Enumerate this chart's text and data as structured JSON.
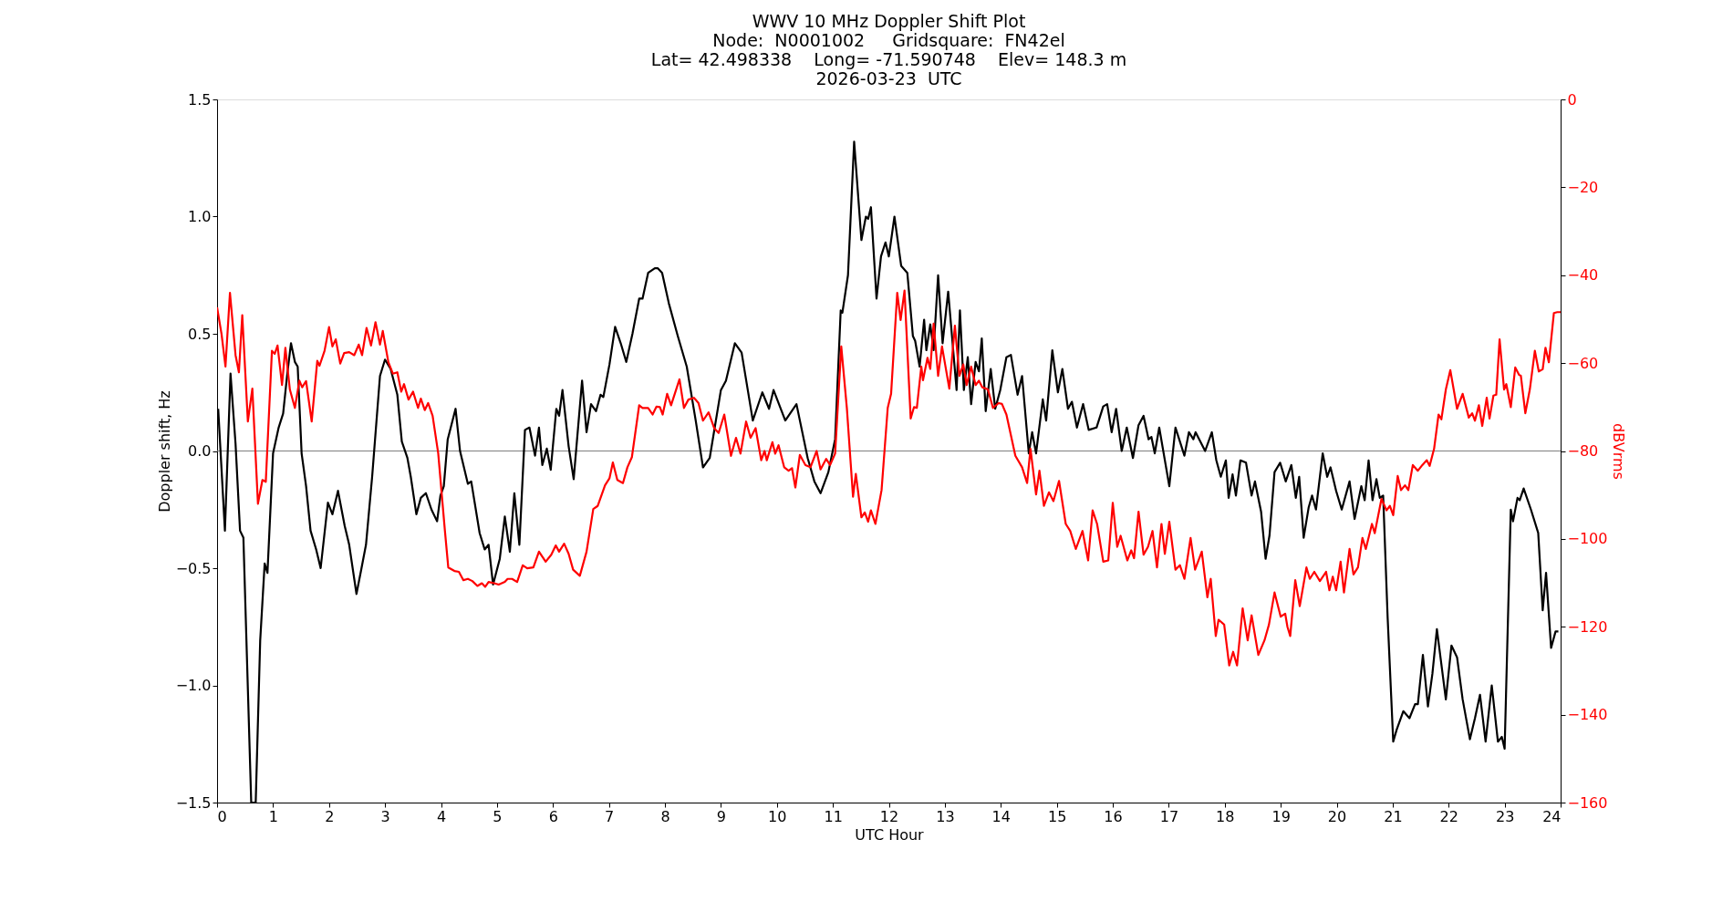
{
  "chart_data": {
    "type": "line",
    "title": "WWV 10 MHz Doppler Shift Plot\nNode:  N0001002     Gridsquare:  FN42el\nLat= 42.498338    Long= -71.590748    Elev= 148.3 m\n2026-03-23  UTC",
    "xlabel": "UTC Hour",
    "ylabel": "Doppler shift, Hz",
    "y2label": "dBVrms",
    "xlim": [
      0,
      24
    ],
    "xticks": [
      0,
      1,
      2,
      3,
      4,
      5,
      6,
      7,
      8,
      9,
      10,
      11,
      12,
      13,
      14,
      15,
      16,
      17,
      18,
      19,
      20,
      21,
      22,
      23,
      24
    ],
    "ylim": [
      -1.5,
      1.5
    ],
    "yticks": [
      {
        "value": -1.5,
        "label": "−1.5"
      },
      {
        "value": -1.0,
        "label": "−1.0"
      },
      {
        "value": -0.5,
        "label": "−0.5"
      },
      {
        "value": 0,
        "label": "0.0"
      },
      {
        "value": 0.5,
        "label": "0.5"
      },
      {
        "value": 1.0,
        "label": "1.0"
      },
      {
        "value": 1.5,
        "label": "1.5"
      }
    ],
    "y2lim": [
      -160,
      0
    ],
    "y2ticks": [
      {
        "value": -160,
        "label": "−160"
      },
      {
        "value": -140,
        "label": "−140"
      },
      {
        "value": -120,
        "label": "−120"
      },
      {
        "value": -100,
        "label": "−100"
      },
      {
        "value": -80,
        "label": "−80"
      },
      {
        "value": -60,
        "label": "−60"
      },
      {
        "value": -40,
        "label": "−40"
      },
      {
        "value": -20,
        "label": "−20"
      },
      0
    ],
    "ref_lines": [
      {
        "axis": "y",
        "value": 0,
        "color": "#808080"
      }
    ],
    "grid": false,
    "marker": "none",
    "line_style": "solid",
    "series": [
      {
        "color": "#000000",
        "x": [
          0.02,
          0.14,
          0.24,
          0.33,
          0.41,
          0.47,
          0.61,
          0.69,
          0.77,
          0.85,
          0.9,
          1.0,
          1.1,
          1.18,
          1.25,
          1.32,
          1.39,
          1.44,
          1.51,
          1.59,
          1.67,
          1.77,
          1.85,
          1.98,
          2.06,
          2.16,
          2.28,
          2.36,
          2.49,
          2.58,
          2.66,
          2.77,
          2.91,
          3.0,
          3.1,
          3.22,
          3.3,
          3.4,
          3.46,
          3.56,
          3.64,
          3.73,
          3.83,
          3.93,
          3.99,
          4.05,
          4.12,
          4.26,
          4.34,
          4.48,
          4.54,
          4.69,
          4.78,
          4.85,
          4.93,
          5.05,
          5.14,
          5.23,
          5.31,
          5.4,
          5.5,
          5.58,
          5.68,
          5.75,
          5.81,
          5.89,
          5.96,
          6.06,
          6.11,
          6.17,
          6.28,
          6.37,
          6.52,
          6.6,
          6.68,
          6.77,
          6.85,
          6.9,
          7.01,
          7.11,
          7.21,
          7.31,
          7.42,
          7.54,
          7.6,
          7.7,
          7.82,
          7.87,
          7.95,
          8.07,
          8.23,
          8.39,
          8.55,
          8.68,
          8.8,
          9.0,
          9.09,
          9.25,
          9.37,
          9.57,
          9.74,
          9.86,
          9.94,
          10.15,
          10.35,
          10.55,
          10.67,
          10.78,
          10.92,
          11.04,
          11.14,
          11.17,
          11.27,
          11.38,
          11.51,
          11.59,
          11.63,
          11.68,
          11.78,
          11.86,
          11.94,
          12.0,
          12.1,
          12.22,
          12.33,
          12.43,
          12.47,
          12.55,
          12.63,
          12.67,
          12.74,
          12.8,
          12.88,
          12.96,
          13.06,
          13.21,
          13.27,
          13.34,
          13.41,
          13.47,
          13.55,
          13.61,
          13.66,
          13.73,
          13.82,
          13.9,
          13.99,
          14.1,
          14.18,
          14.3,
          14.38,
          14.5,
          14.56,
          14.63,
          14.75,
          14.81,
          14.92,
          15.02,
          15.1,
          15.2,
          15.27,
          15.36,
          15.47,
          15.57,
          15.71,
          15.83,
          15.9,
          15.98,
          16.06,
          16.16,
          16.25,
          16.36,
          16.46,
          16.55,
          16.64,
          16.69,
          16.75,
          16.83,
          17.01,
          17.12,
          17.28,
          17.36,
          17.44,
          17.48,
          17.65,
          17.77,
          17.85,
          17.93,
          18.02,
          18.07,
          18.14,
          18.2,
          18.28,
          18.38,
          18.48,
          18.54,
          18.65,
          18.73,
          18.8,
          18.89,
          18.99,
          19.09,
          19.19,
          19.27,
          19.33,
          19.41,
          19.5,
          19.56,
          19.63,
          19.75,
          19.83,
          19.89,
          19.99,
          20.09,
          20.23,
          20.32,
          20.44,
          20.5,
          20.57,
          20.64,
          20.71,
          20.77,
          20.83,
          20.91,
          21.01,
          21.07,
          21.19,
          21.3,
          21.4,
          21.45,
          21.54,
          21.63,
          21.71,
          21.79,
          21.87,
          21.95,
          22.05,
          22.15,
          22.25,
          22.38,
          22.47,
          22.56,
          22.66,
          22.77,
          22.88,
          22.95,
          23.0,
          23.11,
          23.15,
          23.23,
          23.27,
          23.34,
          23.47,
          23.6,
          23.68,
          23.74,
          23.83,
          23.91,
          23.96
        ],
        "values": [
          0.18,
          -0.34,
          0.33,
          0.03,
          -0.34,
          -0.37,
          -1.5,
          -1.5,
          -0.81,
          -0.48,
          -0.52,
          -0.01,
          0.1,
          0.16,
          0.32,
          0.46,
          0.38,
          0.36,
          -0.01,
          -0.15,
          -0.34,
          -0.42,
          -0.5,
          -0.22,
          -0.27,
          -0.17,
          -0.32,
          -0.4,
          -0.61,
          -0.5,
          -0.4,
          -0.11,
          0.32,
          0.39,
          0.35,
          0.24,
          0.04,
          -0.03,
          -0.11,
          -0.27,
          -0.2,
          -0.18,
          -0.25,
          -0.3,
          -0.19,
          -0.15,
          0.05,
          0.18,
          0.0,
          -0.14,
          -0.13,
          -0.35,
          -0.42,
          -0.4,
          -0.57,
          -0.46,
          -0.28,
          -0.43,
          -0.18,
          -0.4,
          0.09,
          0.1,
          -0.02,
          0.1,
          -0.06,
          0.01,
          -0.08,
          0.18,
          0.15,
          0.26,
          0.02,
          -0.12,
          0.3,
          0.08,
          0.2,
          0.17,
          0.24,
          0.23,
          0.37,
          0.53,
          0.46,
          0.38,
          0.5,
          0.65,
          0.65,
          0.76,
          0.78,
          0.78,
          0.76,
          0.63,
          0.49,
          0.36,
          0.13,
          -0.07,
          -0.03,
          0.26,
          0.3,
          0.46,
          0.42,
          0.13,
          0.25,
          0.18,
          0.26,
          0.13,
          0.2,
          -0.03,
          -0.13,
          -0.18,
          -0.09,
          0.05,
          0.6,
          0.59,
          0.75,
          1.32,
          0.9,
          1.0,
          0.99,
          1.04,
          0.65,
          0.83,
          0.89,
          0.83,
          1.0,
          0.79,
          0.76,
          0.49,
          0.47,
          0.36,
          0.56,
          0.43,
          0.54,
          0.43,
          0.75,
          0.46,
          0.68,
          0.26,
          0.6,
          0.26,
          0.4,
          0.2,
          0.38,
          0.34,
          0.48,
          0.17,
          0.35,
          0.18,
          0.26,
          0.4,
          0.41,
          0.24,
          0.32,
          -0.01,
          0.08,
          -0.01,
          0.22,
          0.13,
          0.43,
          0.25,
          0.35,
          0.18,
          0.21,
          0.1,
          0.2,
          0.09,
          0.1,
          0.19,
          0.2,
          0.08,
          0.18,
          0.0,
          0.1,
          -0.03,
          0.11,
          0.15,
          0.05,
          0.06,
          -0.01,
          0.1,
          -0.15,
          0.1,
          -0.02,
          0.08,
          0.05,
          0.08,
          0.0,
          0.08,
          -0.04,
          -0.11,
          -0.04,
          -0.2,
          -0.1,
          -0.19,
          -0.04,
          -0.05,
          -0.19,
          -0.13,
          -0.26,
          -0.46,
          -0.36,
          -0.09,
          -0.05,
          -0.13,
          -0.06,
          -0.2,
          -0.11,
          -0.37,
          -0.24,
          -0.19,
          -0.25,
          -0.01,
          -0.11,
          -0.07,
          -0.17,
          -0.25,
          -0.13,
          -0.29,
          -0.15,
          -0.21,
          -0.04,
          -0.21,
          -0.12,
          -0.2,
          -0.19,
          -0.71,
          -1.24,
          -1.19,
          -1.11,
          -1.14,
          -1.08,
          -1.08,
          -0.87,
          -1.09,
          -0.95,
          -0.76,
          -0.91,
          -1.06,
          -0.83,
          -0.88,
          -1.06,
          -1.23,
          -1.14,
          -1.04,
          -1.24,
          -1.0,
          -1.24,
          -1.22,
          -1.27,
          -0.25,
          -0.3,
          -0.2,
          -0.21,
          -0.16,
          -0.25,
          -0.35,
          -0.68,
          -0.52,
          -0.84,
          -0.77,
          -0.77
        ]
      },
      {
        "color": "#ff0000",
        "axis": "y2",
        "x": [
          0.0,
          0.08,
          0.15,
          0.23,
          0.33,
          0.39,
          0.45,
          0.55,
          0.63,
          0.73,
          0.81,
          0.87,
          0.98,
          1.03,
          1.08,
          1.16,
          1.22,
          1.3,
          1.39,
          1.47,
          1.52,
          1.59,
          1.69,
          1.79,
          1.83,
          1.92,
          2.0,
          2.06,
          2.12,
          2.2,
          2.27,
          2.36,
          2.45,
          2.53,
          2.59,
          2.67,
          2.75,
          2.83,
          2.91,
          2.96,
          3.06,
          3.14,
          3.22,
          3.29,
          3.34,
          3.42,
          3.5,
          3.59,
          3.64,
          3.71,
          3.77,
          3.85,
          3.95,
          4.07,
          4.13,
          4.24,
          4.32,
          4.4,
          4.48,
          4.56,
          4.65,
          4.73,
          4.79,
          4.85,
          4.95,
          5.03,
          5.14,
          5.19,
          5.27,
          5.36,
          5.46,
          5.54,
          5.65,
          5.75,
          5.87,
          5.97,
          6.05,
          6.11,
          6.2,
          6.28,
          6.36,
          6.48,
          6.6,
          6.72,
          6.8,
          6.93,
          7.01,
          7.07,
          7.15,
          7.25,
          7.33,
          7.41,
          7.54,
          7.6,
          7.7,
          7.78,
          7.85,
          7.91,
          7.96,
          8.04,
          8.11,
          8.26,
          8.34,
          8.42,
          8.52,
          8.6,
          8.68,
          8.78,
          8.88,
          8.96,
          9.06,
          9.18,
          9.27,
          9.35,
          9.45,
          9.53,
          9.62,
          9.72,
          9.78,
          9.82,
          9.92,
          9.97,
          10.03,
          10.13,
          10.21,
          10.27,
          10.33,
          10.41,
          10.51,
          10.6,
          10.71,
          10.78,
          10.88,
          10.95,
          11.04,
          11.15,
          11.25,
          11.36,
          11.41,
          11.51,
          11.57,
          11.63,
          11.68,
          11.76,
          11.87,
          11.98,
          12.04,
          12.15,
          12.21,
          12.28,
          12.39,
          12.45,
          12.5,
          12.58,
          12.61,
          12.69,
          12.74,
          12.8,
          12.88,
          12.95,
          13.08,
          13.18,
          13.26,
          13.33,
          13.39,
          13.47,
          13.55,
          13.61,
          13.67,
          13.77,
          13.86,
          13.96,
          14.02,
          14.1,
          14.26,
          14.38,
          14.47,
          14.53,
          14.63,
          14.69,
          14.77,
          14.86,
          14.94,
          15.04,
          15.16,
          15.24,
          15.34,
          15.46,
          15.56,
          15.64,
          15.72,
          15.83,
          15.92,
          16.0,
          16.08,
          16.14,
          16.26,
          16.33,
          16.38,
          16.46,
          16.55,
          16.63,
          16.71,
          16.79,
          16.87,
          16.93,
          17.01,
          17.12,
          17.2,
          17.28,
          17.39,
          17.47,
          17.59,
          17.69,
          17.75,
          17.84,
          17.89,
          17.99,
          18.08,
          18.15,
          18.22,
          18.32,
          18.41,
          18.48,
          18.6,
          18.71,
          18.79,
          18.89,
          19.0,
          19.08,
          19.12,
          19.17,
          19.26,
          19.34,
          19.46,
          19.52,
          19.6,
          19.7,
          19.81,
          19.87,
          19.93,
          19.99,
          20.07,
          20.13,
          20.23,
          20.3,
          20.38,
          20.46,
          20.52,
          20.63,
          20.68,
          20.8,
          20.89,
          20.95,
          21.01,
          21.09,
          21.15,
          21.22,
          21.28,
          21.36,
          21.45,
          21.53,
          21.61,
          21.66,
          21.74,
          21.82,
          21.87,
          21.95,
          22.03,
          22.09,
          22.15,
          22.25,
          22.36,
          22.42,
          22.47,
          22.54,
          22.6,
          22.68,
          22.73,
          22.8,
          22.85,
          22.91,
          22.99,
          23.03,
          23.11,
          23.19,
          23.26,
          23.29,
          23.37,
          23.45,
          23.54,
          23.61,
          23.68,
          23.73,
          23.79,
          23.88,
          23.94,
          24.0
        ],
        "values": [
          -47.3,
          -53.4,
          -60.8,
          -44,
          -58.2,
          -62.1,
          -49.1,
          -73.3,
          -65.8,
          -92,
          -86.6,
          -87,
          -57.2,
          -57.9,
          -56,
          -65,
          -56.5,
          -66,
          -70.2,
          -64,
          -65.5,
          -64.1,
          -73.3,
          -59.5,
          -60.6,
          -57.2,
          -51.8,
          -56.2,
          -54.6,
          -60.1,
          -57.7,
          -57.5,
          -58.2,
          -55.8,
          -58.2,
          -52,
          -56,
          -50.7,
          -55.8,
          -52.7,
          -59.8,
          -62.4,
          -62.1,
          -66.5,
          -64.8,
          -68.3,
          -66.5,
          -70.2,
          -68.1,
          -70.7,
          -69.1,
          -72,
          -80.5,
          -98.2,
          -106.5,
          -107.3,
          -107.5,
          -109.4,
          -109.1,
          -109.6,
          -110.7,
          -110.1,
          -110.9,
          -109.8,
          -110.1,
          -110.4,
          -109.8,
          -109.1,
          -109.1,
          -109.8,
          -106,
          -106.7,
          -106.5,
          -102.9,
          -105.2,
          -103.6,
          -101.5,
          -102.9,
          -101.1,
          -103.4,
          -107,
          -108.4,
          -102.9,
          -93.2,
          -92.5,
          -87.8,
          -86.2,
          -82.6,
          -86.6,
          -87.3,
          -83.7,
          -81.4,
          -69.6,
          -70.2,
          -70.2,
          -71.7,
          -69.9,
          -70,
          -71.7,
          -67,
          -69.6,
          -63.7,
          -70.2,
          -68.3,
          -67.9,
          -69.1,
          -73.1,
          -71.2,
          -74.8,
          -75.9,
          -71.7,
          -81.1,
          -77,
          -80.6,
          -73.3,
          -77,
          -74.8,
          -82.1,
          -80,
          -82.1,
          -78,
          -80.6,
          -78.7,
          -83.7,
          -84.5,
          -83.9,
          -88.3,
          -80.9,
          -83.2,
          -83.7,
          -80,
          -84.2,
          -81.8,
          -83.2,
          -80.6,
          -56.2,
          -70.2,
          -90.4,
          -85.2,
          -95.1,
          -94,
          -96.1,
          -93.5,
          -96.6,
          -88.9,
          -70.2,
          -67,
          -44,
          -50.2,
          -43.5,
          -72.6,
          -70,
          -70.2,
          -60.8,
          -63.9,
          -58.8,
          -61.3,
          -51,
          -62.9,
          -56.2,
          -65.8,
          -51.5,
          -62.9,
          -60.3,
          -65,
          -60.8,
          -65,
          -64,
          -65.5,
          -66,
          -70.2,
          -69.1,
          -69.3,
          -71.7,
          -81.1,
          -83.7,
          -87.3,
          -79.5,
          -89.9,
          -84.5,
          -92.5,
          -89.4,
          -91.4,
          -86.8,
          -96.6,
          -98.2,
          -102.3,
          -98.2,
          -104.9,
          -93.5,
          -96.6,
          -105.2,
          -104.9,
          -91.8,
          -101.8,
          -99.3,
          -104.9,
          -102.6,
          -104.4,
          -93.8,
          -103.6,
          -101.8,
          -98.2,
          -106.5,
          -96.6,
          -103.4,
          -96.1,
          -107,
          -106,
          -109.1,
          -99.8,
          -107,
          -102.9,
          -113.3,
          -109.1,
          -122.1,
          -118.4,
          -119.5,
          -128.8,
          -125.7,
          -128.8,
          -115.8,
          -123.1,
          -117.4,
          -126.4,
          -123.1,
          -119.5,
          -112.2,
          -117.7,
          -117,
          -120,
          -122.1,
          -109.4,
          -115.3,
          -106.5,
          -109.1,
          -107.5,
          -109.6,
          -107.5,
          -111.7,
          -108.6,
          -111.7,
          -105.2,
          -112.2,
          -102.3,
          -108.1,
          -106.5,
          -99.8,
          -102.3,
          -96.6,
          -98.7,
          -90.9,
          -93.5,
          -92.5,
          -94.6,
          -85.7,
          -88.9,
          -87.8,
          -88.9,
          -83.2,
          -84.5,
          -83.2,
          -82.1,
          -83.4,
          -79.5,
          -71.7,
          -72.8,
          -66,
          -61.6,
          -66,
          -70.4,
          -67,
          -72.4,
          -71.4,
          -73.1,
          -69.6,
          -74.3,
          -67.9,
          -72.6,
          -67.4,
          -67.2,
          -54.6,
          -66,
          -64.8,
          -70,
          -61,
          -62.7,
          -62.9,
          -71.4,
          -66,
          -57.2,
          -61.9,
          -61.4,
          -56.5,
          -59.8,
          -48.6,
          -48.4,
          -48.4
        ]
      }
    ]
  }
}
